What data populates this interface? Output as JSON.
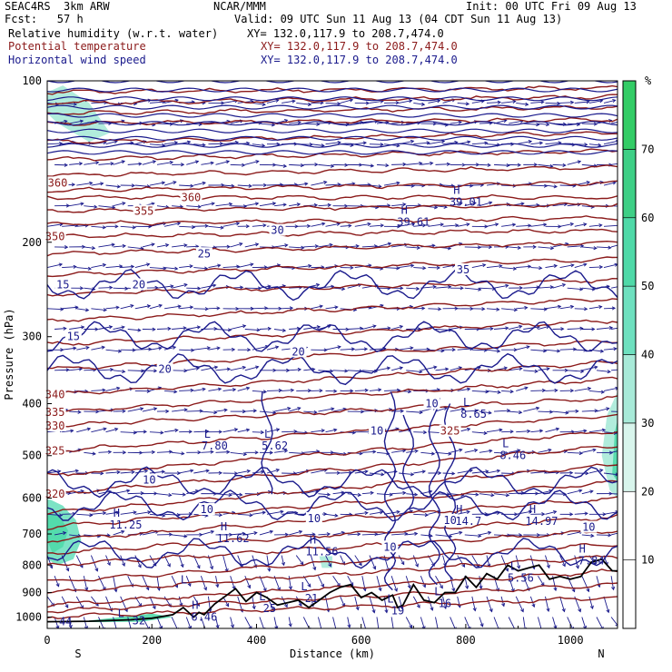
{
  "header": {
    "model": "SEAC4RS  3km ARW",
    "org": "NCAR/MMM",
    "init": "Init: 00 UTC Fri 09 Aug 13",
    "fcst": "Fcst:   57 h",
    "valid": "Valid: 09 UTC Sun 11 Aug 13 (04 CDT Sun 11 Aug 13)"
  },
  "fields": [
    {
      "name": "Relative humidity (w.r.t. water)",
      "xy": "XY= 132.0,117.9 to 208.7,474.0",
      "color": "#000000"
    },
    {
      "name": "Potential temperature",
      "xy": "XY= 132.0,117.9 to 208.7,474.0",
      "color": "#8b1a1a"
    },
    {
      "name": "Horizontal wind speed",
      "xy": "XY= 132.0,117.9 to 208.7,474.0",
      "color": "#1a1a8c"
    }
  ],
  "colors": {
    "theta": "#8b1a1a",
    "wind": "#1a1a8c",
    "terrain": "#000000",
    "rh_fill": "#44dd99"
  },
  "chart_data": {
    "type": "heatmap",
    "xlabel": "Distance (km)",
    "ylabel": "Pressure (hPa)",
    "x_ticks": [
      0,
      200,
      400,
      600,
      800,
      1000
    ],
    "y_ticks": [
      100,
      200,
      300,
      400,
      500,
      600,
      700,
      800,
      900,
      1000
    ],
    "xlim": [
      0,
      1090
    ],
    "ylim": [
      1050,
      100
    ],
    "y_scale": "log",
    "end_labels": {
      "left": "S",
      "right": "N"
    },
    "colorbar": {
      "unit": "%",
      "ticks": [
        10,
        20,
        30,
        40,
        50,
        60,
        70
      ],
      "shaded_from": 30,
      "colors": [
        "#ffffff",
        "#ffffff",
        "#ffffff",
        "#d8f5ec",
        "#a8ead8",
        "#6ee0bf",
        "#4fd9a8",
        "#3ecf86",
        "#33cc66"
      ]
    },
    "theta_levels": [
      {
        "value": 320,
        "label": "320",
        "x": 15,
        "p": 590
      },
      {
        "value": 325,
        "label": "325",
        "x": 15,
        "p": 490
      },
      {
        "value": 330,
        "label": "330",
        "x": 15,
        "p": 440
      },
      {
        "value": 335,
        "label": "335",
        "x": 15,
        "p": 415
      },
      {
        "value": 340,
        "label": "340",
        "x": 15,
        "p": 385
      },
      {
        "value": 350,
        "label": "350",
        "x": 15,
        "p": 195
      },
      {
        "value": 355,
        "label": "355",
        "x": 185,
        "p": 175
      },
      {
        "value": 360,
        "label": "360",
        "x": 20,
        "p": 155
      },
      {
        "value": 360,
        "label": "360",
        "x": 275,
        "p": 165
      },
      {
        "value": 325,
        "label": "325",
        "x": 770,
        "p": 450
      }
    ],
    "theta_lines_p_left": [
      1000,
      975,
      950,
      900,
      860,
      800,
      760,
      720,
      680,
      640,
      590,
      545,
      490,
      440,
      415,
      385,
      345,
      310,
      280,
      250,
      230,
      210,
      195,
      185,
      175,
      165,
      160,
      150,
      140,
      130,
      120,
      115,
      110,
      105
    ],
    "theta_lines_p_right": [
      920,
      870,
      820,
      770,
      730,
      690,
      650,
      600,
      560,
      520,
      480,
      450,
      420,
      390,
      360,
      335,
      305,
      280,
      255,
      235,
      215,
      200,
      190,
      180,
      170,
      165,
      155,
      145,
      135,
      125,
      118,
      112,
      107,
      103
    ],
    "wind_labels": [
      {
        "text": "15",
        "x": 30,
        "p": 240
      },
      {
        "text": "15",
        "x": 50,
        "p": 300
      },
      {
        "text": "20",
        "x": 175,
        "p": 240
      },
      {
        "text": "20",
        "x": 225,
        "p": 345
      },
      {
        "text": "25",
        "x": 300,
        "p": 210
      },
      {
        "text": "30",
        "x": 440,
        "p": 190
      },
      {
        "text": "20",
        "x": 480,
        "p": 320
      },
      {
        "text": "35",
        "x": 795,
        "p": 225
      },
      {
        "text": "10",
        "x": 195,
        "p": 555
      },
      {
        "text": "10",
        "x": 305,
        "p": 630
      },
      {
        "text": "10",
        "x": 510,
        "p": 655
      },
      {
        "text": "10",
        "x": 630,
        "p": 450
      },
      {
        "text": "10",
        "x": 735,
        "p": 400
      },
      {
        "text": "10",
        "x": 770,
        "p": 660
      },
      {
        "text": "10",
        "x": 655,
        "p": 740
      },
      {
        "text": "10",
        "x": 1035,
        "p": 680
      }
    ],
    "highs": [
      {
        "label": "H",
        "value": "11.25",
        "x": 150,
        "p": 660
      },
      {
        "label": "H",
        "value": "11.62",
        "x": 355,
        "p": 700
      },
      {
        "label": "H",
        "value": "11.56",
        "x": 525,
        "p": 740
      },
      {
        "label": "H",
        "value": "14.7",
        "x": 805,
        "p": 650
      },
      {
        "label": "H",
        "value": "14.97",
        "x": 945,
        "p": 650
      },
      {
        "label": "H",
        "value": "39.61",
        "x": 700,
        "p": 180
      },
      {
        "label": "H",
        "value": "39.01",
        "x": 800,
        "p": 165
      },
      {
        "label": "H",
        "value": "6.46",
        "x": 300,
        "p": 980
      },
      {
        "label": "H",
        "value": "7.84",
        "x": 1040,
        "p": 770
      }
    ],
    "lows": [
      {
        "label": "L",
        "value": "7.80",
        "x": 320,
        "p": 470
      },
      {
        "label": "L",
        "value": "5.62",
        "x": 435,
        "p": 470
      },
      {
        "label": "L",
        "value": "8.65",
        "x": 815,
        "p": 410
      },
      {
        "label": "L",
        "value": "8.46",
        "x": 890,
        "p": 490
      },
      {
        "label": "L",
        "value": "5.56",
        "x": 905,
        "p": 830
      },
      {
        "label": "L",
        "value": "",
        "x": 275,
        "p": 880
      },
      {
        "label": "L",
        "value": "25",
        "x": 425,
        "p": 945
      },
      {
        "label": "L",
        "value": "21",
        "x": 505,
        "p": 905
      },
      {
        "label": "L",
        "value": "19",
        "x": 670,
        "p": 955
      },
      {
        "label": "L",
        "value": "16",
        "x": 760,
        "p": 925
      },
      {
        "label": "L",
        "value": "",
        "x": 155,
        "p": 1015
      }
    ],
    "surface_wind_labels": [
      {
        "text": "44",
        "x": 35,
        "p": 1020
      },
      {
        "text": "32",
        "x": 175,
        "p": 1015
      }
    ],
    "terrain": {
      "x": [
        0,
        80,
        120,
        160,
        200,
        240,
        260,
        280,
        290,
        300,
        320,
        340,
        360,
        380,
        400,
        420,
        440,
        460,
        480,
        500,
        520,
        540,
        560,
        580,
        600,
        620,
        640,
        660,
        670,
        680,
        700,
        720,
        740,
        760,
        780,
        800,
        820,
        840,
        860,
        880,
        900,
        920,
        940,
        960,
        980,
        1000,
        1020,
        1040,
        1060,
        1080,
        1090
      ],
      "p": [
        1020,
        1018,
        1015,
        1012,
        1005,
        990,
        960,
        1000,
        980,
        990,
        945,
        915,
        885,
        935,
        900,
        920,
        950,
        940,
        930,
        960,
        930,
        900,
        880,
        870,
        920,
        900,
        930,
        910,
        960,
        950,
        870,
        930,
        940,
        900,
        900,
        840,
        880,
        830,
        850,
        800,
        820,
        810,
        800,
        850,
        840,
        850,
        840,
        790,
        780,
        820,
        820
      ]
    },
    "rh_blobs": [
      {
        "x": [
          0,
          30,
          55,
          65,
          50,
          20,
          0
        ],
        "p": [
          600,
          620,
          660,
          720,
          780,
          800,
          780
        ],
        "rh": 45
      },
      {
        "x": [
          0,
          25,
          40,
          30,
          10,
          0
        ],
        "p": [
          640,
          650,
          690,
          740,
          760,
          720
        ],
        "rh": 62
      },
      {
        "x": [
          1070,
          1090,
          1090,
          1075,
          1060
        ],
        "p": [
          420,
          380,
          600,
          580,
          500
        ],
        "rh": 38
      },
      {
        "x": [
          1085,
          1090,
          1090,
          1080
        ],
        "p": [
          450,
          430,
          560,
          540
        ],
        "rh": 55
      },
      {
        "x": [
          60,
          120,
          200,
          240,
          180,
          100,
          60
        ],
        "p": [
          1020,
          1005,
          985,
          1000,
          1020,
          1022,
          1020
        ],
        "rh": 60
      },
      {
        "x": [
          0,
          30,
          80,
          120,
          80,
          20,
          0
        ],
        "p": [
          105,
          102,
          110,
          125,
          130,
          120,
          115
        ],
        "rh": 40
      },
      {
        "x": [
          520,
          545,
          545,
          525
        ],
        "p": [
          770,
          770,
          810,
          810
        ],
        "rh": 40
      }
    ]
  }
}
